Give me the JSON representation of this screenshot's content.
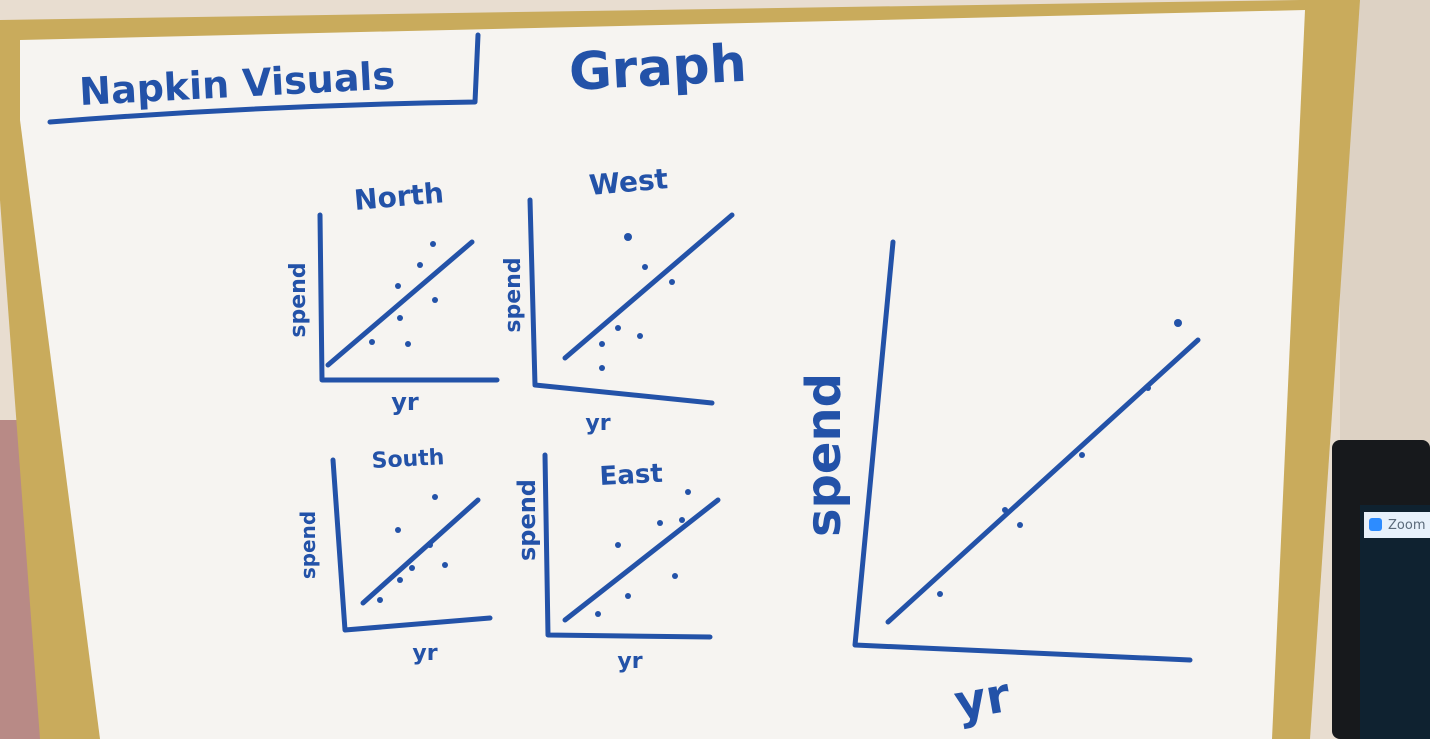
{
  "header": {
    "title": "Napkin Visuals",
    "subtitle": "Graph"
  },
  "panels": [
    {
      "title": "North",
      "y_label": "spend",
      "x_label": "yr"
    },
    {
      "title": "West",
      "y_label": "spend",
      "x_label": "yr"
    },
    {
      "title": "South",
      "y_label": "spend",
      "x_label": "yr"
    },
    {
      "title": "East",
      "y_label": "spend",
      "x_label": "yr"
    }
  ],
  "main": {
    "y_label": "spend",
    "x_label": "yr"
  },
  "device": {
    "app": "Zoom"
  }
}
